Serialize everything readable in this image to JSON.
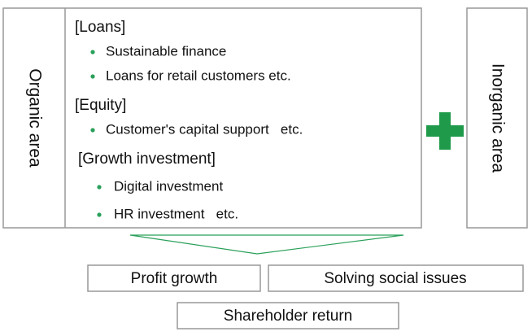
{
  "organic": {
    "label": "Organic area",
    "sections": [
      {
        "heading": "[Loans]",
        "items": [
          "Sustainable finance",
          "Loans for retail customers etc."
        ]
      },
      {
        "heading": "[Equity]",
        "items": [
          "Customer's capital support   etc."
        ]
      },
      {
        "heading": "[Growth investment]",
        "items": [
          "Digital investment",
          "HR investment   etc."
        ]
      }
    ]
  },
  "inorganic": {
    "label": "Inorganic area"
  },
  "outcomes": [
    "Profit growth",
    "Solving social issues"
  ],
  "shareholder_return": "Shareholder return"
}
